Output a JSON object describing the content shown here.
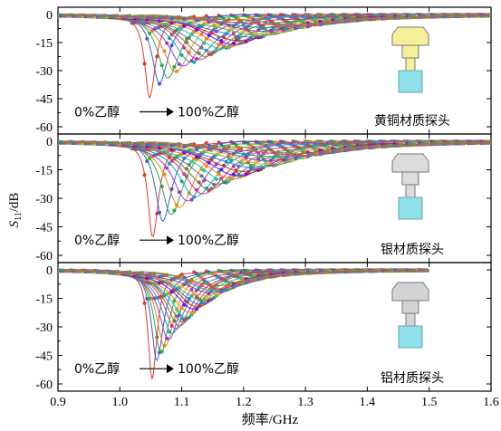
{
  "chart_data": [
    {
      "type": "line",
      "panel": "top",
      "annotation_from": "0%乙醇",
      "annotation_to": "100%乙醇",
      "probe_label": "黄铜材质探头",
      "probe_icon": "brass-probe-icon",
      "probe_color": "#f5ef9a",
      "tip_color": "#8fe0ea",
      "x_range": [
        0.9,
        1.6
      ],
      "y_range": [
        -60,
        0
      ],
      "y_ticks": [
        "0",
        "-15",
        "-30",
        "-45",
        "-60"
      ],
      "x_extent_max": 1.6,
      "series_count": 20,
      "resonance_start_freq": 1.048,
      "resonance_end_freq": 1.27,
      "min_depth_start": -45,
      "min_depth_end": -5,
      "width_start": 0.012,
      "width_end": 0.13
    },
    {
      "type": "line",
      "panel": "middle",
      "annotation_from": "0%乙醇",
      "annotation_to": "100%乙醇",
      "probe_label": "银材质探头",
      "probe_icon": "silver-probe-icon",
      "probe_color": "#dcdcdc",
      "tip_color": "#8fe0ea",
      "x_range": [
        0.9,
        1.6
      ],
      "y_range": [
        -60,
        0
      ],
      "y_ticks": [
        "0",
        "-15",
        "-30",
        "-45",
        "-60"
      ],
      "x_extent_max": 1.6,
      "series_count": 20,
      "resonance_start_freq": 1.053,
      "resonance_end_freq": 1.28,
      "min_depth_start": -51,
      "min_depth_end": -6,
      "width_start": 0.012,
      "width_end": 0.13
    },
    {
      "type": "line",
      "panel": "bottom",
      "annotation_from": "0%乙醇",
      "annotation_to": "100%乙醇",
      "probe_label": "铝材质探头",
      "probe_icon": "aluminum-probe-icon",
      "probe_color": "#d4d4d4",
      "tip_color": "#8fe0ea",
      "x_range": [
        0.9,
        1.6
      ],
      "y_range": [
        -60,
        0
      ],
      "y_ticks": [
        "0",
        "-15",
        "-30",
        "-45",
        "-60"
      ],
      "x_extent_max": 1.5,
      "series_count": 20,
      "resonance_start_freq": 1.052,
      "resonance_end_freq": 1.16,
      "min_depth_start": -58,
      "min_depth_end": -8,
      "width_start": 0.01,
      "width_end": 0.075
    }
  ],
  "axes": {
    "x_ticks": [
      "0.9",
      "1.0",
      "1.1",
      "1.2",
      "1.3",
      "1.4",
      "1.5",
      "1.6"
    ],
    "x_label": "频率/GHz",
    "y_label_main": "S",
    "y_label_sub": "11",
    "y_label_unit": "/dB"
  },
  "series_colors": [
    "#e5382b",
    "#3a5bd9",
    "#2aa84a",
    "#e08a1e",
    "#9b3fc2",
    "#17a2b8",
    "#d63384",
    "#8b6d2f",
    "#6c757d",
    "#20c997",
    "#fd7e14",
    "#6610f2",
    "#c0392b",
    "#2c7be5",
    "#5cb85c",
    "#f0ad4e",
    "#8e44ad",
    "#16a085",
    "#e83e8c",
    "#7f8c2d"
  ]
}
